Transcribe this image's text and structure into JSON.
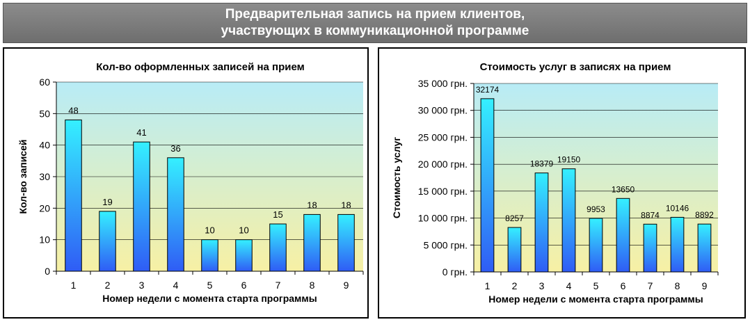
{
  "banner": {
    "line1": "Предварительная запись на прием клиентов,",
    "line2": "участвующих в коммуникационной программе"
  },
  "colors": {
    "banner_bg": "#7a7a7a",
    "plot_top": "#b8ecf6",
    "plot_bottom": "#f7f0a4",
    "bar_top": "#35f0ff",
    "bar_bottom": "#2f5cf5"
  },
  "chart_data": [
    {
      "type": "bar",
      "title": "Кол-во оформленных записей на прием",
      "xlabel": "Номер недели с момента старта программы",
      "ylabel": "Кол-во записей",
      "categories": [
        "1",
        "2",
        "3",
        "4",
        "5",
        "6",
        "7",
        "8",
        "9"
      ],
      "values": [
        48,
        19,
        41,
        36,
        10,
        10,
        15,
        18,
        18
      ],
      "data_labels": [
        "48",
        "19",
        "41",
        "36",
        "10",
        "10",
        "15",
        "18",
        "18"
      ],
      "ylim": [
        0,
        60
      ],
      "yticks": [
        0,
        10,
        20,
        30,
        40,
        50,
        60
      ],
      "ytick_labels": [
        "0",
        "10",
        "20",
        "30",
        "40",
        "50",
        "60"
      ],
      "grid": true
    },
    {
      "type": "bar",
      "title": "Стоимость услуг в записях на прием",
      "xlabel": "Номер недели с момента старта программы",
      "ylabel": "Стоимость услуг",
      "categories": [
        "1",
        "2",
        "3",
        "4",
        "5",
        "6",
        "7",
        "8",
        "9"
      ],
      "values": [
        32174,
        8257,
        18379,
        19150,
        9953,
        13650,
        8874,
        10146,
        8892
      ],
      "data_labels": [
        "32174",
        "8257",
        "18379",
        "19150",
        "9953",
        "13650",
        "8874",
        "10146",
        "8892"
      ],
      "ylim": [
        0,
        35000
      ],
      "yticks": [
        0,
        5000,
        10000,
        15000,
        20000,
        25000,
        30000,
        35000
      ],
      "ytick_labels": [
        "0 грн.",
        "5 000 грн.",
        "10 000 грн.",
        "15 000 грн.",
        "20 000 грн.",
        "25 000 грн.",
        "30 000 грн.",
        "35 000 грн."
      ],
      "grid": true
    }
  ]
}
